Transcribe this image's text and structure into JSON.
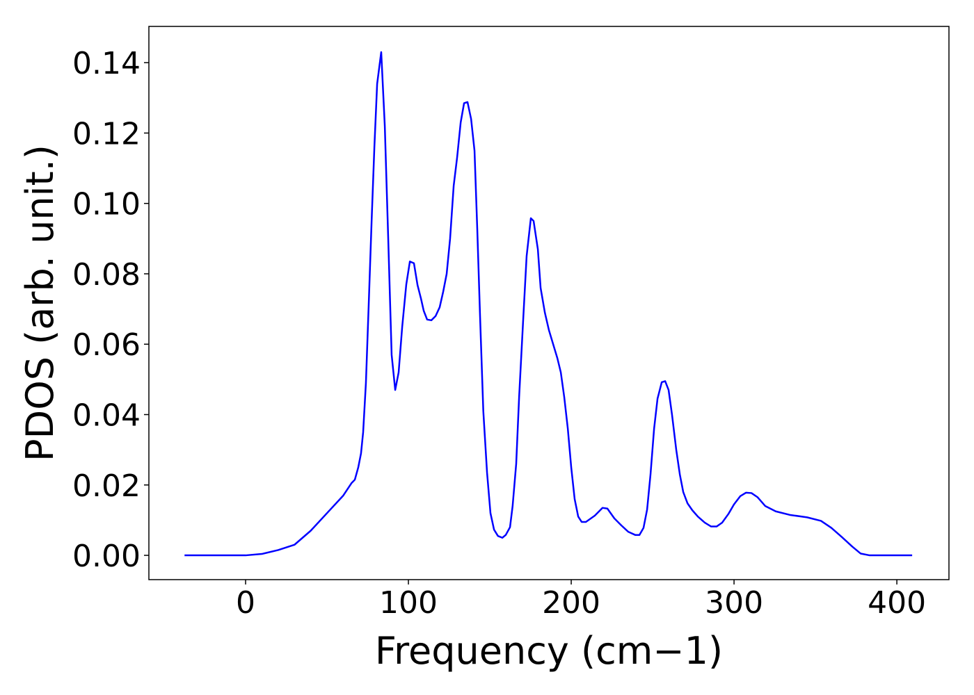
{
  "chart_data": {
    "type": "line",
    "xlabel": "Frequency (cm−1)",
    "ylabel": "PDOS (arb. unit.)",
    "xlim": [
      -59.4,
      432
    ],
    "ylim": [
      -0.0069,
      0.1503
    ],
    "xticks": [
      0,
      100,
      200,
      300,
      400
    ],
    "yticks": [
      {
        "value": 0,
        "label": "0.00"
      },
      {
        "value": 0.02,
        "label": "0.02"
      },
      {
        "value": 0.04,
        "label": "0.04"
      },
      {
        "value": 0.06,
        "label": "0.06"
      },
      {
        "value": 0.08,
        "label": "0.08"
      },
      {
        "value": 0.1,
        "label": "0.10"
      },
      {
        "value": 0.12,
        "label": "0.12"
      },
      {
        "value": 0.14,
        "label": "0.14"
      }
    ],
    "grid": false,
    "series": [
      {
        "name": "PDOS",
        "color": "#0000ff",
        "x": [
          -37.5,
          0,
          10,
          20,
          30,
          40,
          50,
          60,
          65,
          67.1,
          69.2,
          70.9,
          72.2,
          73.9,
          75.6,
          77.4,
          79.1,
          80.8,
          83.3,
          85.5,
          87.6,
          89.7,
          91.9,
          94,
          96.2,
          98.7,
          100.9,
          103.4,
          105.6,
          107.7,
          109.4,
          111.5,
          114.1,
          116.7,
          119.2,
          121.4,
          123.5,
          125.6,
          127.8,
          129.9,
          132.1,
          134.2,
          136.3,
          138.5,
          140.6,
          142.3,
          144,
          146,
          148.3,
          150.4,
          152.6,
          155,
          157.7,
          159.8,
          162.4,
          164,
          166.2,
          168,
          170.5,
          172.6,
          175.2,
          176.9,
          179.5,
          181.2,
          183.8,
          186.3,
          188.9,
          191.5,
          193.6,
          195.7,
          197.9,
          200,
          202.1,
          204.3,
          206.4,
          209,
          214.5,
          219.2,
          222.2,
          226.5,
          230.8,
          235,
          239.3,
          241.9,
          244.4,
          246.6,
          248.7,
          250.9,
          253,
          255.6,
          257.7,
          259.8,
          261.9,
          264.5,
          266.7,
          268.8,
          271.4,
          274.4,
          277.8,
          282,
          285.9,
          289.3,
          292.7,
          296.6,
          300,
          303.8,
          307.3,
          310.7,
          314.5,
          319.2,
          325.6,
          334.2,
          344.9,
          353.4,
          359.8,
          366.2,
          372.6,
          377.8,
          383.3,
          409.4
        ],
        "values": [
          0,
          0,
          0.0004,
          0.0015,
          0.003,
          0.007,
          0.012,
          0.017,
          0.0205,
          0.0215,
          0.025,
          0.029,
          0.035,
          0.049,
          0.071,
          0.095,
          0.116,
          0.134,
          0.143,
          0.122,
          0.09,
          0.057,
          0.047,
          0.052,
          0.065,
          0.077,
          0.0835,
          0.083,
          0.0768,
          0.073,
          0.0695,
          0.067,
          0.0668,
          0.068,
          0.0705,
          0.075,
          0.08,
          0.09,
          0.105,
          0.113,
          0.123,
          0.1285,
          0.1288,
          0.124,
          0.115,
          0.0926,
          0.068,
          0.041,
          0.0235,
          0.012,
          0.0073,
          0.0055,
          0.005,
          0.0058,
          0.008,
          0.014,
          0.026,
          0.045,
          0.067,
          0.085,
          0.0958,
          0.095,
          0.087,
          0.076,
          0.069,
          0.064,
          0.06,
          0.056,
          0.052,
          0.045,
          0.036,
          0.025,
          0.016,
          0.011,
          0.0095,
          0.0095,
          0.0113,
          0.0135,
          0.0133,
          0.0105,
          0.0085,
          0.0067,
          0.0058,
          0.0058,
          0.0078,
          0.013,
          0.023,
          0.036,
          0.0445,
          0.0492,
          0.0495,
          0.047,
          0.04,
          0.03,
          0.023,
          0.018,
          0.0148,
          0.0128,
          0.011,
          0.0093,
          0.0082,
          0.0082,
          0.0093,
          0.0118,
          0.0145,
          0.0168,
          0.0178,
          0.0177,
          0.0165,
          0.014,
          0.0125,
          0.0115,
          0.0108,
          0.0098,
          0.0078,
          0.0052,
          0.0025,
          0.0005,
          0,
          0
        ]
      }
    ]
  }
}
